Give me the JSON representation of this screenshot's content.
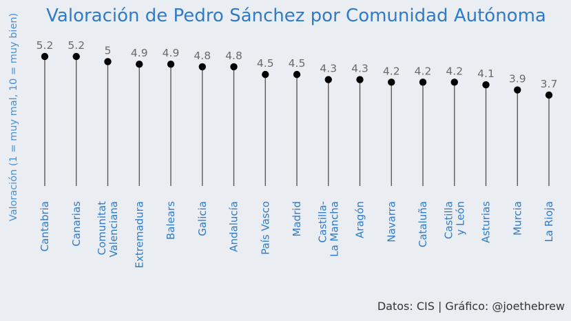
{
  "chart_data": {
    "type": "lollipop",
    "title": "Valoración de Pedro Sánchez por Comunidad Autónoma",
    "ylabel": "Valoración (1 = muy mal, 10 = muy bien)",
    "xlabel": "",
    "ylim": [
      0,
      5.2
    ],
    "grid": false,
    "categories": [
      [
        "Cantabria"
      ],
      [
        "Canarias"
      ],
      [
        "Comunitat",
        "Valenciana"
      ],
      [
        "Extremadura"
      ],
      [
        "Balears"
      ],
      [
        "Galicia"
      ],
      [
        "Andalucía"
      ],
      [
        "País Vasco"
      ],
      [
        "Madrid"
      ],
      [
        "Castilla-",
        "La Mancha"
      ],
      [
        "Aragón"
      ],
      [
        "Navarra"
      ],
      [
        "Cataluña"
      ],
      [
        "Castilla",
        "y León"
      ],
      [
        "Asturias"
      ],
      [
        "Murcia"
      ],
      [
        "La Rioja"
      ]
    ],
    "values": [
      5.2,
      5.2,
      5.0,
      4.9,
      4.9,
      4.8,
      4.8,
      4.5,
      4.5,
      4.3,
      4.3,
      4.2,
      4.2,
      4.2,
      4.1,
      3.9,
      3.7
    ],
    "value_labels": [
      "5.2",
      "5.2",
      "5",
      "4.9",
      "4.9",
      "4.8",
      "4.8",
      "4.5",
      "4.5",
      "4.3",
      "4.3",
      "4.2",
      "4.2",
      "4.2",
      "4.1",
      "3.9",
      "3.7"
    ],
    "caption": "Datos: CIS | Gráfico: @joethebrew",
    "colors": {
      "background": "#eaedf2",
      "title": "#2f7bc8",
      "axis_text": "#2f7bc8",
      "value_text": "#6a6a6a",
      "stem": "#4d4d4d",
      "dot": "#000000"
    }
  }
}
